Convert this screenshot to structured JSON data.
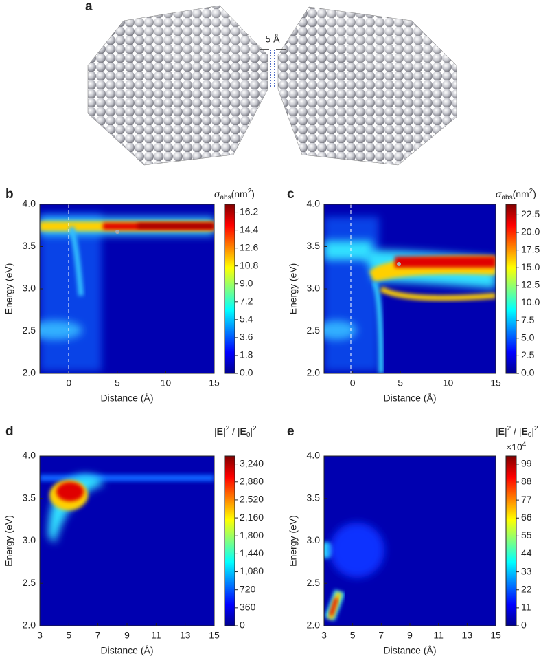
{
  "panel_a": {
    "label": "a",
    "gap_label": "5 Å"
  },
  "chart_data": [
    {
      "type": "heatmap",
      "panel": "b",
      "xlabel": "Distance (Å)",
      "ylabel": "Energy (eV)",
      "xlim": [
        -3,
        15
      ],
      "xticks": [
        0,
        5,
        10,
        15
      ],
      "ylim": [
        2,
        4
      ],
      "yticks": [
        {
          "value": 2,
          "label": "2.0"
        },
        {
          "value": 2.5,
          "label": "2.5"
        },
        {
          "value": 3,
          "label": "3.0"
        },
        {
          "value": 3.5,
          "label": "3.5"
        },
        {
          "value": 4,
          "label": "4.0"
        }
      ],
      "colorbar_label": [
        "σ",
        "abs",
        "(nm",
        "2",
        ")"
      ],
      "clim": [
        0,
        17
      ],
      "cticks": [
        {
          "value": 0,
          "label": "0.0"
        },
        {
          "value": 1.8,
          "label": "1.8"
        },
        {
          "value": 3.6,
          "label": "3.6"
        },
        {
          "value": 5.4,
          "label": "5.4"
        },
        {
          "value": 7.2,
          "label": "7.2"
        },
        {
          "value": 9,
          "label": "9.0"
        },
        {
          "value": 10.8,
          "label": "10.8"
        },
        {
          "value": 12.6,
          "label": "12.6"
        },
        {
          "value": 14.4,
          "label": "14.4"
        },
        {
          "value": 16.2,
          "label": "16.2"
        }
      ]
    },
    {
      "type": "heatmap",
      "panel": "c",
      "xlabel": "Distance (Å)",
      "ylabel": "Energy (eV)",
      "xlim": [
        -3,
        15
      ],
      "xticks": [
        0,
        5,
        10,
        15
      ],
      "ylim": [
        2,
        4
      ],
      "yticks": [
        {
          "value": 2,
          "label": "2.0"
        },
        {
          "value": 2.5,
          "label": "2.5"
        },
        {
          "value": 3,
          "label": "3.0"
        },
        {
          "value": 3.5,
          "label": "3.5"
        },
        {
          "value": 4,
          "label": "4.0"
        }
      ],
      "colorbar_label": [
        "σ",
        "abs",
        "(nm",
        "2",
        ")"
      ],
      "clim": [
        0,
        24
      ],
      "cticks": [
        {
          "value": 0,
          "label": "0.0"
        },
        {
          "value": 2.5,
          "label": "2.5"
        },
        {
          "value": 5,
          "label": "5.0"
        },
        {
          "value": 7.5,
          "label": "7.5"
        },
        {
          "value": 10,
          "label": "10.0"
        },
        {
          "value": 12.5,
          "label": "12.5"
        },
        {
          "value": 15,
          "label": "15.0"
        },
        {
          "value": 17.5,
          "label": "17.5"
        },
        {
          "value": 20,
          "label": "20.0"
        },
        {
          "value": 22.5,
          "label": "22.5"
        }
      ]
    },
    {
      "type": "heatmap",
      "panel": "d",
      "xlabel": "Distance (Å)",
      "ylabel": "Energy (eV)",
      "xlim": [
        3,
        15
      ],
      "xticks": [
        3,
        5,
        7,
        9,
        11,
        13,
        15
      ],
      "ylim": [
        2,
        4
      ],
      "yticks": [
        {
          "value": 2,
          "label": "2.0"
        },
        {
          "value": 2.5,
          "label": "2.5"
        },
        {
          "value": 3,
          "label": "3.0"
        },
        {
          "value": 3.5,
          "label": "3.5"
        },
        {
          "value": 4,
          "label": "4.0"
        }
      ],
      "colorbar_label": [
        "|",
        "E",
        "|",
        "2",
        " / |",
        "E",
        "0",
        "|",
        "2"
      ],
      "clim": [
        0,
        3400
      ],
      "cticks": [
        0,
        360,
        720,
        {
          "value": 1080,
          "label": "1,080"
        },
        {
          "value": 1440,
          "label": "1,440"
        },
        {
          "value": 1800,
          "label": "1,800"
        },
        {
          "value": 2160,
          "label": "2,160"
        },
        {
          "value": 2520,
          "label": "2,520"
        },
        {
          "value": 2880,
          "label": "2,880"
        },
        {
          "value": 3240,
          "label": "3,240"
        }
      ]
    },
    {
      "type": "heatmap",
      "panel": "e",
      "xlabel": "Distance (Å)",
      "ylabel": "Energy (eV)",
      "xlim": [
        3,
        15
      ],
      "xticks": [
        3,
        5,
        7,
        9,
        11,
        13,
        15
      ],
      "ylim": [
        2,
        4
      ],
      "yticks": [
        {
          "value": 2,
          "label": "2.0"
        },
        {
          "value": 2.5,
          "label": "2.5"
        },
        {
          "value": 3,
          "label": "3.0"
        },
        {
          "value": 3.5,
          "label": "3.5"
        },
        {
          "value": 4,
          "label": "4.0"
        }
      ],
      "colorbar_label": [
        "|",
        "E",
        "|",
        "2",
        " / |",
        "E",
        "0",
        "|",
        "2"
      ],
      "colorbar_multiplier": [
        "×10",
        "4"
      ],
      "clim": [
        0,
        104
      ],
      "cticks": [
        0,
        11,
        22,
        33,
        44,
        55,
        66,
        77,
        88,
        99
      ]
    }
  ]
}
